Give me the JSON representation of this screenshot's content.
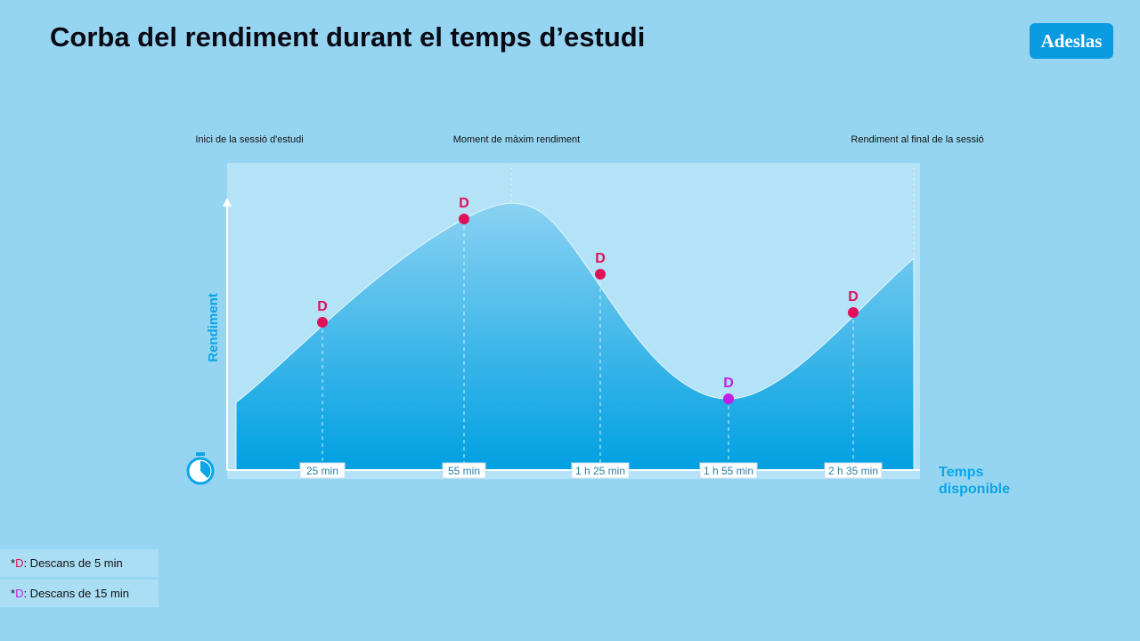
{
  "header": {
    "title": "Corba del rendiment durant el temps d’estudi",
    "logo": "Adeslas"
  },
  "diagram": {
    "phase_labels": [
      "Inici de la sessió d'estudi",
      "Moment de màxim rendiment",
      "Rendiment al final de la sessió"
    ],
    "y_axis_label": "Rendiment",
    "x_axis_label": "Temps disponible",
    "breaks": [
      {
        "marker": "D",
        "time": "25 min",
        "color": "#e0105a"
      },
      {
        "marker": "D",
        "time": "55 min",
        "color": "#e0105a"
      },
      {
        "marker": "D",
        "time": "1 h 25 min",
        "color": "#e0105a"
      },
      {
        "marker": "D",
        "time": "1 h 55 min",
        "color": "#c21fe6"
      },
      {
        "marker": "D",
        "time": "2 h 35 min",
        "color": "#e0105a"
      }
    ]
  },
  "legend": [
    {
      "prefix": "*",
      "marker": "D",
      "text": ": Descans de 5 min",
      "color": "#e0105a"
    },
    {
      "prefix": "*",
      "marker": "D",
      "text": ": Descans de 15 min",
      "color": "#c21fe6"
    }
  ]
}
